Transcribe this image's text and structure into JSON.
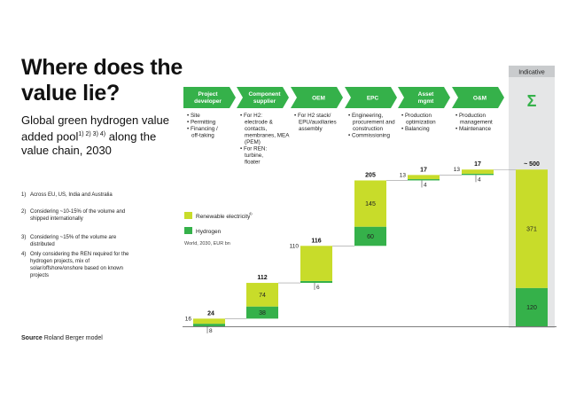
{
  "title": "Where does the value lie?",
  "subtitle": "Global green hydrogen value added pool",
  "subtitle_refs": "1) 2) 3) 4)",
  "subtitle_tail": "along the value chain, 2030",
  "footnotes": [
    {
      "no": "1)",
      "text": "Across EU, US, India and Australia"
    },
    {
      "no": "2)",
      "text": "Considering ~10-15% of the volume and shipped internationally"
    },
    {
      "no": "3)",
      "text": "Considering ~15% of the volume are distributed"
    },
    {
      "no": "4)",
      "text": "Only considering the REN required for the hydrogen projects, mix of solar/offshore/onshore based on known projects"
    }
  ],
  "source_label": "Source",
  "source_text": "Roland Berger model",
  "indicative_label": "Indicative",
  "sigma_symbol": "Σ",
  "colors": {
    "renewable": "#c8dc2a",
    "hydrogen": "#35b14a",
    "arrow": "#35b14a",
    "indicative_bg": "#e5e6e7",
    "indicative_header": "#c9cbcd",
    "connector": "#999999"
  },
  "steps": [
    {
      "label": "Project developer",
      "bullets": [
        "Site",
        "Permitting",
        "Financing / off-taking"
      ]
    },
    {
      "label": "Component supplier",
      "bullets": [
        "For H2: electrode & contacts, membranes, MEA (PEM)",
        "For REN: turbine, floater"
      ]
    },
    {
      "label": "OEM",
      "bullets": [
        "For H2 stack/ EPU/auxiliaries assembly"
      ]
    },
    {
      "label": "EPC",
      "bullets": [
        "Engineering, procurement and construction",
        "Commissioning"
      ]
    },
    {
      "label": "Asset mgmt",
      "bullets": [
        "Production optimization",
        "Balancing"
      ]
    },
    {
      "label": "O&M",
      "bullets": [
        "Production management",
        "Maintenance"
      ]
    }
  ],
  "chart_data": {
    "type": "bar",
    "subtype": "waterfall",
    "title": "",
    "unit_note": "World, 2030, EUR bn",
    "categories": [
      "Project developer",
      "Component supplier",
      "OEM",
      "EPC",
      "Asset mgmt",
      "O&M",
      "Σ"
    ],
    "series": [
      {
        "name": "Renewable electricity",
        "name_ref": "4)",
        "values": [
          16,
          74,
          110,
          145,
          13,
          13,
          371
        ]
      },
      {
        "name": "Hydrogen",
        "values": [
          8,
          38,
          6,
          60,
          4,
          4,
          120
        ]
      }
    ],
    "totals": [
      "24",
      "112",
      "116",
      "205",
      "17",
      "17",
      "~ 500"
    ],
    "ylim": [
      0,
      500
    ],
    "legend_position": "left-middle"
  }
}
